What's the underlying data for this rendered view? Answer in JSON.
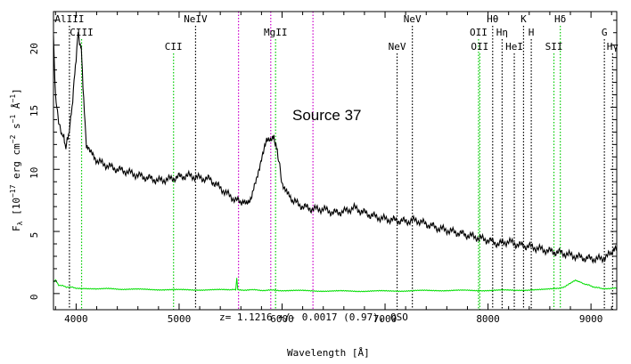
{
  "chart_data": {
    "type": "line",
    "title": "",
    "source_label": "Source 37",
    "redshift_text": "z=  1.1216  +/-  0.0017  (0.97),  QSO",
    "xlabel": "Wavelength  [Å]",
    "ylabel_parts": {
      "main": "F",
      "sub_lambda": "λ",
      "bracket_open": "[10",
      "exp1": "−17",
      "unit1": "erg cm",
      "exp2": "−2",
      "unit2": "s",
      "exp3": "−1",
      "unit3": "Å",
      "exp4": "−1",
      "bracket_close": "]"
    },
    "xlim": [
      3780,
      9250
    ],
    "ylim": [
      -1.3,
      22.7
    ],
    "x_ticks": [
      4000,
      5000,
      6000,
      7000,
      8000,
      9000
    ],
    "y_ticks": [
      0,
      5,
      10,
      15,
      20
    ],
    "colors": {
      "flux": "#000000",
      "noise": "#00dd00",
      "emission_line": "#000000",
      "narrow_line": "#00cc00",
      "sky_line": "#cc00cc"
    },
    "series": [
      {
        "name": "flux",
        "x": [
          3780,
          3800,
          3830,
          3860,
          3880,
          3900,
          3920,
          3940,
          3960,
          3980,
          4000,
          4020,
          4040,
          4050,
          4060,
          4080,
          4100,
          4120,
          4150,
          4200,
          4300,
          4400,
          4500,
          4600,
          4700,
          4800,
          4900,
          5000,
          5100,
          5200,
          5300,
          5400,
          5500,
          5600,
          5650,
          5700,
          5750,
          5800,
          5850,
          5900,
          5920,
          5940,
          5960,
          6000,
          6050,
          6100,
          6200,
          6300,
          6400,
          6500,
          6600,
          6700,
          6800,
          6900,
          7000,
          7100,
          7200,
          7300,
          7400,
          7500,
          7600,
          7700,
          7800,
          7900,
          8000,
          8100,
          8200,
          8300,
          8400,
          8500,
          8600,
          8700,
          8800,
          8900,
          9000,
          9100,
          9200,
          9250
        ],
        "y": [
          20.5,
          16.0,
          14.0,
          13.0,
          12.5,
          11.8,
          12.5,
          13.5,
          15.0,
          17.0,
          19.0,
          21.0,
          20.0,
          19.5,
          18.0,
          14.5,
          12.0,
          11.5,
          11.2,
          10.7,
          10.3,
          10.0,
          9.8,
          9.5,
          9.3,
          9.1,
          9.2,
          9.4,
          9.5,
          9.3,
          9.2,
          8.5,
          7.8,
          7.3,
          7.2,
          7.8,
          9.0,
          11.0,
          12.2,
          12.6,
          12.5,
          12.0,
          11.0,
          9.0,
          8.0,
          7.5,
          7.0,
          6.8,
          6.8,
          6.5,
          6.6,
          6.9,
          6.5,
          6.2,
          6.0,
          5.9,
          5.8,
          5.9,
          5.6,
          5.3,
          5.1,
          4.9,
          4.7,
          4.5,
          4.3,
          4.0,
          4.2,
          3.9,
          3.8,
          3.6,
          3.4,
          3.3,
          3.1,
          2.9,
          2.8,
          2.8,
          3.2,
          3.6
        ]
      },
      {
        "name": "noise",
        "x": [
          3780,
          3800,
          3830,
          3900,
          4000,
          4200,
          4500,
          5000,
          5500,
          5550,
          5560,
          5570,
          5600,
          6000,
          6500,
          7000,
          7500,
          8000,
          8500,
          8700,
          8800,
          8850,
          8900,
          9000,
          9100,
          9250
        ],
        "y": [
          0.9,
          1.1,
          0.7,
          0.55,
          0.45,
          0.4,
          0.35,
          0.3,
          0.3,
          0.3,
          1.3,
          0.3,
          0.3,
          0.25,
          0.2,
          0.2,
          0.25,
          0.25,
          0.3,
          0.4,
          0.8,
          1.1,
          0.9,
          0.6,
          0.4,
          0.45
        ]
      }
    ],
    "markers": [
      {
        "x": 3935,
        "style": "black",
        "label": "AlIII",
        "label_row": "top"
      },
      {
        "x": 4053,
        "style": "green",
        "label": "CIII",
        "label_row": "second"
      },
      {
        "x": 4946,
        "style": "green",
        "label": "CII",
        "label_row": "third"
      },
      {
        "x": 5160,
        "style": "black",
        "label": "NeIV",
        "label_row": "top"
      },
      {
        "x": 5577,
        "style": "sky",
        "label": "",
        "label_row": "none"
      },
      {
        "x": 5890,
        "style": "sky",
        "label": "",
        "label_row": "none"
      },
      {
        "x": 5937,
        "style": "green",
        "label": "MgII",
        "label_row": "second"
      },
      {
        "x": 6300,
        "style": "sky",
        "label": "",
        "label_row": "none"
      },
      {
        "x": 7117,
        "style": "black",
        "label": "NeV",
        "label_row": "third"
      },
      {
        "x": 7265,
        "style": "black",
        "label": "NeV",
        "label_row": "top"
      },
      {
        "x": 7908,
        "style": "green",
        "label": "OII",
        "label_row": "second"
      },
      {
        "x": 7920,
        "style": "green",
        "label": "OII",
        "label_row": "third"
      },
      {
        "x": 8045,
        "style": "black",
        "label": "Hθ",
        "label_row": "top"
      },
      {
        "x": 8137,
        "style": "black",
        "label": "Hη",
        "label_row": "second"
      },
      {
        "x": 8255,
        "style": "black",
        "label": "HeI",
        "label_row": "third"
      },
      {
        "x": 8345,
        "style": "black",
        "label": "K",
        "label_row": "top"
      },
      {
        "x": 8420,
        "style": "black",
        "label": "H",
        "label_row": "second"
      },
      {
        "x": 8640,
        "style": "green",
        "label": "SII",
        "label_row": "third"
      },
      {
        "x": 8702,
        "style": "green",
        "label": "Hδ",
        "label_row": "top"
      },
      {
        "x": 9130,
        "style": "black",
        "label": "G",
        "label_row": "second"
      },
      {
        "x": 9210,
        "style": "black",
        "label": "Hγ",
        "label_row": "third"
      }
    ]
  }
}
